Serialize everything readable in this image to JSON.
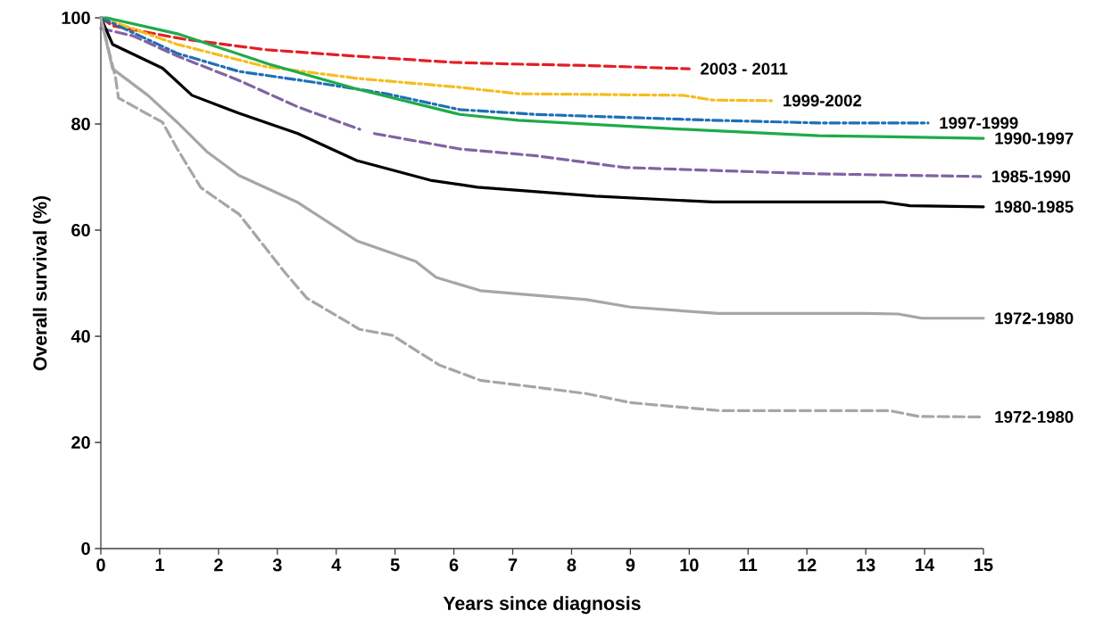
{
  "chart_data": {
    "type": "line",
    "xlabel": "Years since diagnosis",
    "ylabel": "Overall survival (%)",
    "xlim": [
      0,
      15
    ],
    "ylim": [
      0,
      100
    ],
    "xticks": [
      0,
      1,
      2,
      3,
      4,
      5,
      6,
      7,
      8,
      9,
      10,
      11,
      12,
      13,
      14,
      15
    ],
    "yticks": [
      0,
      20,
      40,
      60,
      80,
      100
    ],
    "legend": false,
    "series": [
      {
        "name": "2003 - 2011",
        "color": "#e41e26",
        "line_style": "dashed",
        "x": [
          0,
          0.2,
          1.4,
          2.8,
          4.3,
          6,
          7,
          8.3,
          10
        ],
        "values": [
          100,
          98.5,
          96,
          94,
          92.8,
          91.6,
          91.3,
          91,
          90.4
        ]
      },
      {
        "name": "1999-2002",
        "color": "#f5bd1f",
        "line_style": "dashdot",
        "x": [
          0,
          0.3,
          1.3,
          2.8,
          4.35,
          6.1,
          7.1,
          9.9,
          10.4,
          11.4
        ],
        "values": [
          100,
          98.9,
          95,
          90.8,
          88.6,
          86.9,
          85.7,
          85.4,
          84.5,
          84.4
        ]
      },
      {
        "name": "1997-1999",
        "color": "#1f6fb5",
        "line_style": "dashdot",
        "x": [
          0,
          0.2,
          1.3,
          2.35,
          3.6,
          4.85,
          6.1,
          7.4,
          10.4,
          12.2,
          14.06
        ],
        "values": [
          100,
          99,
          93.3,
          89.9,
          87.9,
          85.7,
          82.7,
          81.8,
          80.7,
          80.2,
          80.2
        ]
      },
      {
        "name": "1990-1997",
        "color": "#1faa4a",
        "line_style": "solid",
        "x": [
          0,
          0.1,
          1.3,
          2.85,
          4.35,
          6.1,
          7.1,
          9.9,
          12.2,
          15
        ],
        "values": [
          100,
          100,
          97,
          91.3,
          86.6,
          81.8,
          80.7,
          79,
          77.8,
          77.3
        ]
      },
      {
        "name": "1985-1990",
        "color": "#8064a2",
        "line_style": "dashed",
        "x": [
          0,
          0.55,
          1.3,
          2.35,
          3.35,
          4.4,
          4.5,
          4.65,
          6.1,
          7.4,
          8.9,
          12.2,
          14.95
        ],
        "values": [
          98,
          96.6,
          92.8,
          88.2,
          83.2,
          79,
          null,
          78.2,
          75.3,
          74,
          71.8,
          70.6,
          70.1
        ]
      },
      {
        "name": "1980-1985",
        "color": "#000000",
        "line_style": "solid",
        "x": [
          0,
          0.2,
          1.05,
          1.55,
          2.35,
          3.35,
          4.35,
          5.6,
          6.1,
          6.4,
          8.4,
          10.4,
          13.3,
          13.75,
          15
        ],
        "values": [
          100,
          95,
          90.5,
          85.4,
          82,
          78.2,
          73.1,
          69.4,
          68.6,
          68.1,
          66.4,
          65.3,
          65.3,
          64.6,
          64.4
        ]
      },
      {
        "name": "1972-1980",
        "color": "#a6a6a6",
        "line_style": "solid",
        "x": [
          0,
          0.2,
          0.8,
          1.3,
          1.8,
          2.35,
          3.35,
          4.35,
          5.35,
          5.7,
          6.45,
          8.25,
          9,
          10.5,
          13,
          13.55,
          13.95,
          15
        ],
        "values": [
          100,
          90.4,
          85.4,
          80.3,
          74.8,
          70.3,
          65.2,
          58,
          54.1,
          51.1,
          48.6,
          46.9,
          45.5,
          44.3,
          44.3,
          44.2,
          43.4,
          43.4
        ]
      },
      {
        "name": "1972-1980",
        "color": "#a6a6a6",
        "line_style": "dashed",
        "x": [
          0,
          0.25,
          0.3,
          1.05,
          1.3,
          1.7,
          2.35,
          3.1,
          3.5,
          4.4,
          4.95,
          5.75,
          6.45,
          7.4,
          8.25,
          9,
          10.5,
          13.4,
          13.9,
          15
        ],
        "values": [
          100,
          88.7,
          84.9,
          80.3,
          75.3,
          68,
          63,
          52.4,
          47.2,
          41.3,
          40.2,
          34.6,
          31.7,
          30.4,
          29.2,
          27.5,
          26,
          26,
          24.9,
          24.8
        ]
      }
    ]
  }
}
